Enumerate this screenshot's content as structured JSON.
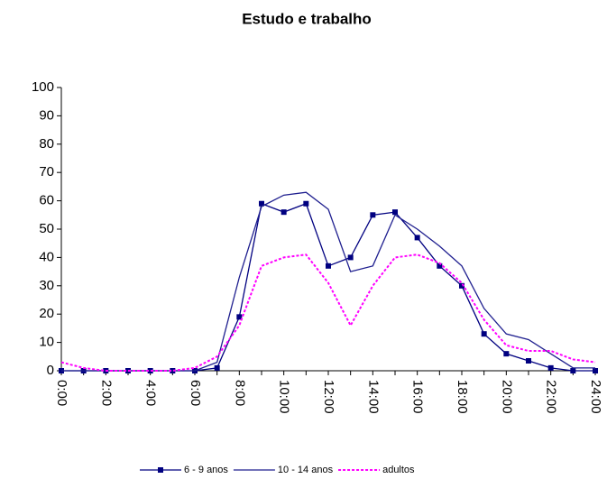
{
  "chart_data": {
    "type": "line",
    "title": "Estudo e trabalho",
    "categories": [
      "0:00",
      null,
      "2:00",
      null,
      "4:00",
      null,
      "6:00",
      null,
      "8:00",
      null,
      "10:00",
      null,
      "12:00",
      null,
      "14:00",
      null,
      "16:00",
      null,
      "18:00",
      null,
      "20:00",
      null,
      "22:00",
      null,
      "24:00"
    ],
    "series": [
      {
        "name": "6 - 9 anos",
        "color": "#000080",
        "marker": "square",
        "dash": false,
        "values": [
          0,
          0,
          0,
          0,
          0,
          0,
          0,
          1,
          19,
          59,
          56,
          59,
          37,
          40,
          55,
          56,
          47,
          37,
          30,
          13,
          6,
          3.5,
          1,
          0,
          0
        ]
      },
      {
        "name": "10 - 14 anos",
        "color": "#1f1f8f",
        "marker": "none",
        "dash": false,
        "values": [
          0,
          0,
          0,
          0,
          0,
          0,
          0,
          3,
          33,
          58,
          62,
          63,
          57,
          35,
          37,
          55,
          50,
          44,
          37,
          22,
          13,
          11,
          6,
          1,
          1
        ]
      },
      {
        "name": "adultos",
        "color": "#ff00ff",
        "marker": "none",
        "dash": true,
        "values": [
          3,
          1,
          0,
          0,
          0,
          0,
          1,
          5,
          16,
          37,
          40,
          41,
          31,
          16,
          30,
          40,
          41,
          38,
          31,
          18,
          9,
          7,
          7,
          4,
          3
        ]
      }
    ],
    "ylim": [
      0,
      100
    ],
    "yticks": [
      0,
      10,
      20,
      30,
      40,
      50,
      60,
      70,
      80,
      90,
      100
    ],
    "grid": false,
    "legend": "bottom"
  }
}
